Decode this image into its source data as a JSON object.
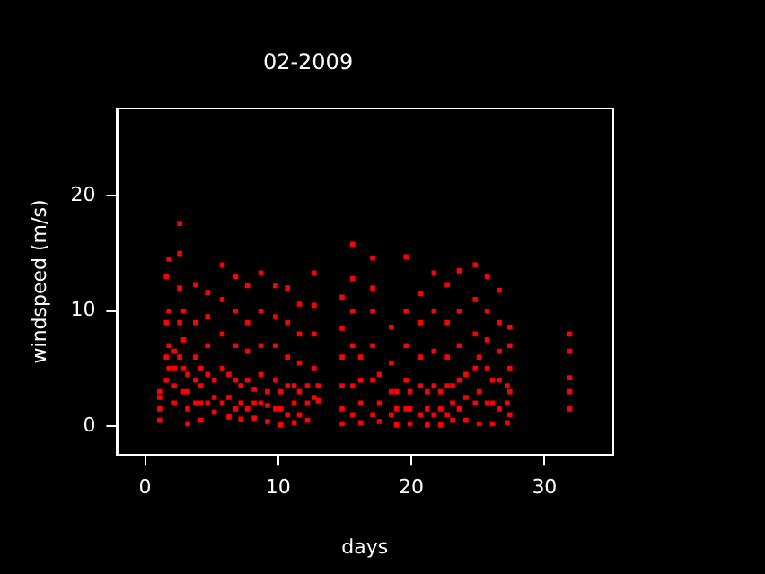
{
  "chart_data": {
    "type": "scatter",
    "title": "02-2009",
    "xlabel": "days",
    "ylabel": "windspeed (m/s)",
    "xlim": [
      -2.1,
      35.1
    ],
    "ylim": [
      -2.5,
      27.6
    ],
    "xticks": [
      0,
      10,
      20,
      30
    ],
    "yticks": [
      0,
      10,
      20
    ],
    "grid": false,
    "legend": false,
    "marker": "square",
    "series": [
      {
        "color": "#ff0000",
        "x": [
          1.1,
          1.1,
          1.1,
          1.1,
          1.6,
          1.6,
          1.6,
          1.6,
          1.8,
          1.8,
          1.8,
          1.8,
          2.2,
          2.2,
          2.2,
          2.2,
          2.6,
          2.6,
          2.6,
          2.6,
          2.6,
          2.9,
          2.9,
          2.9,
          2.9,
          3.2,
          3.2,
          3.2,
          3.2,
          3.8,
          3.8,
          3.8,
          3.8,
          3.8,
          4.2,
          4.2,
          4.2,
          4.2,
          4.7,
          4.7,
          4.7,
          4.7,
          4.7,
          5.2,
          5.2,
          5.2,
          5.8,
          5.8,
          5.8,
          5.8,
          5.8,
          6.3,
          6.3,
          6.3,
          6.8,
          6.8,
          6.8,
          6.8,
          6.8,
          7.2,
          7.2,
          7.2,
          7.7,
          7.7,
          7.7,
          7.7,
          7.7,
          8.2,
          8.2,
          8.2,
          8.7,
          8.7,
          8.7,
          8.7,
          8.7,
          9.2,
          9.2,
          9.2,
          9.8,
          9.8,
          9.8,
          9.8,
          9.8,
          10.2,
          10.2,
          10.2,
          10.7,
          10.7,
          10.7,
          10.7,
          10.7,
          11.2,
          11.2,
          11.2,
          11.6,
          11.6,
          11.6,
          11.6,
          11.6,
          12.2,
          12.2,
          12.2,
          12.7,
          12.7,
          12.7,
          12.7,
          12.7,
          13.0,
          13.0,
          14.8,
          14.8,
          14.8,
          14.8,
          14.8,
          14.8,
          15.6,
          15.6,
          15.6,
          15.6,
          15.6,
          15.6,
          16.2,
          16.2,
          16.2,
          16.2,
          17.1,
          17.1,
          17.1,
          17.1,
          17.1,
          17.1,
          17.6,
          17.6,
          17.6,
          18.5,
          18.5,
          18.5,
          18.5,
          18.9,
          18.9,
          18.9,
          19.6,
          19.6,
          19.6,
          19.6,
          19.6,
          19.9,
          19.9,
          19.9,
          20.7,
          20.7,
          20.7,
          20.7,
          20.7,
          21.2,
          21.2,
          21.2,
          21.7,
          21.7,
          21.7,
          21.7,
          21.7,
          22.2,
          22.2,
          22.2,
          22.7,
          22.7,
          22.7,
          22.7,
          22.7,
          23.1,
          23.1,
          23.1,
          23.6,
          23.6,
          23.6,
          23.6,
          23.6,
          24.1,
          24.1,
          24.1,
          24.8,
          24.8,
          24.8,
          24.8,
          24.8,
          25.1,
          25.1,
          25.1,
          25.7,
          25.7,
          25.7,
          25.7,
          25.7,
          26.1,
          26.1,
          26.1,
          26.6,
          26.6,
          26.6,
          26.6,
          26.6,
          27.2,
          27.2,
          27.2,
          27.4,
          27.4,
          27.4,
          27.4,
          27.4,
          31.9,
          31.9,
          31.9,
          31.9,
          31.9
        ],
        "values": [
          0.5,
          1.5,
          2.5,
          3.0,
          4,
          6,
          9,
          13,
          5,
          7,
          10,
          14.5,
          2,
          3.5,
          5,
          6.5,
          6,
          9,
          12,
          15,
          17.6,
          3,
          5,
          7.5,
          10,
          0.2,
          1.5,
          3,
          4.5,
          2,
          4,
          6,
          9,
          12.3,
          0.5,
          2,
          3.5,
          5,
          2,
          4.5,
          7,
          9.5,
          11.6,
          1.2,
          2.5,
          4,
          2,
          5,
          8,
          11,
          14,
          0.8,
          2.5,
          4.5,
          1.5,
          4,
          7,
          10,
          13,
          0.6,
          2,
          3.5,
          1.5,
          4,
          6.5,
          9,
          12.2,
          0.7,
          2,
          3.2,
          2,
          4.5,
          7,
          10,
          13.3,
          0.4,
          1.8,
          3,
          1.5,
          4,
          7,
          9.5,
          12.2,
          0.1,
          1.5,
          3,
          1,
          3.5,
          6,
          9,
          12,
          0.3,
          2,
          3.5,
          1,
          3,
          5.5,
          8,
          10.6,
          0.5,
          2,
          3.5,
          2.5,
          5,
          8,
          10.5,
          13.3,
          2.2,
          3.5,
          0.2,
          1.5,
          3.5,
          6,
          8.5,
          11.2,
          1,
          3.5,
          7,
          10,
          12.8,
          15.8,
          0.3,
          2,
          4,
          6,
          1,
          4,
          7,
          10,
          12,
          14.6,
          0.4,
          2,
          4.5,
          1,
          3,
          5.5,
          8.6,
          0.1,
          1.5,
          3,
          1.5,
          4,
          7,
          10,
          14.7,
          0.2,
          1.5,
          3,
          1,
          3.5,
          6,
          9,
          11.5,
          0.1,
          1.5,
          3,
          1,
          3.5,
          6.5,
          10,
          13.3,
          0.1,
          1.5,
          3,
          1,
          3.5,
          6,
          9,
          12.3,
          0.5,
          2,
          3.5,
          1.5,
          4,
          7,
          10,
          13.5,
          0.5,
          2.5,
          4.5,
          2,
          5,
          8,
          11,
          14,
          0.2,
          3,
          6,
          2,
          5,
          7.5,
          10,
          13,
          0.2,
          2,
          4,
          1.5,
          4,
          6.5,
          9,
          11.8,
          0.3,
          2,
          3.5,
          1,
          3,
          5,
          7,
          8.6,
          1.5,
          3,
          4.2,
          6.5,
          8
        ]
      }
    ]
  }
}
